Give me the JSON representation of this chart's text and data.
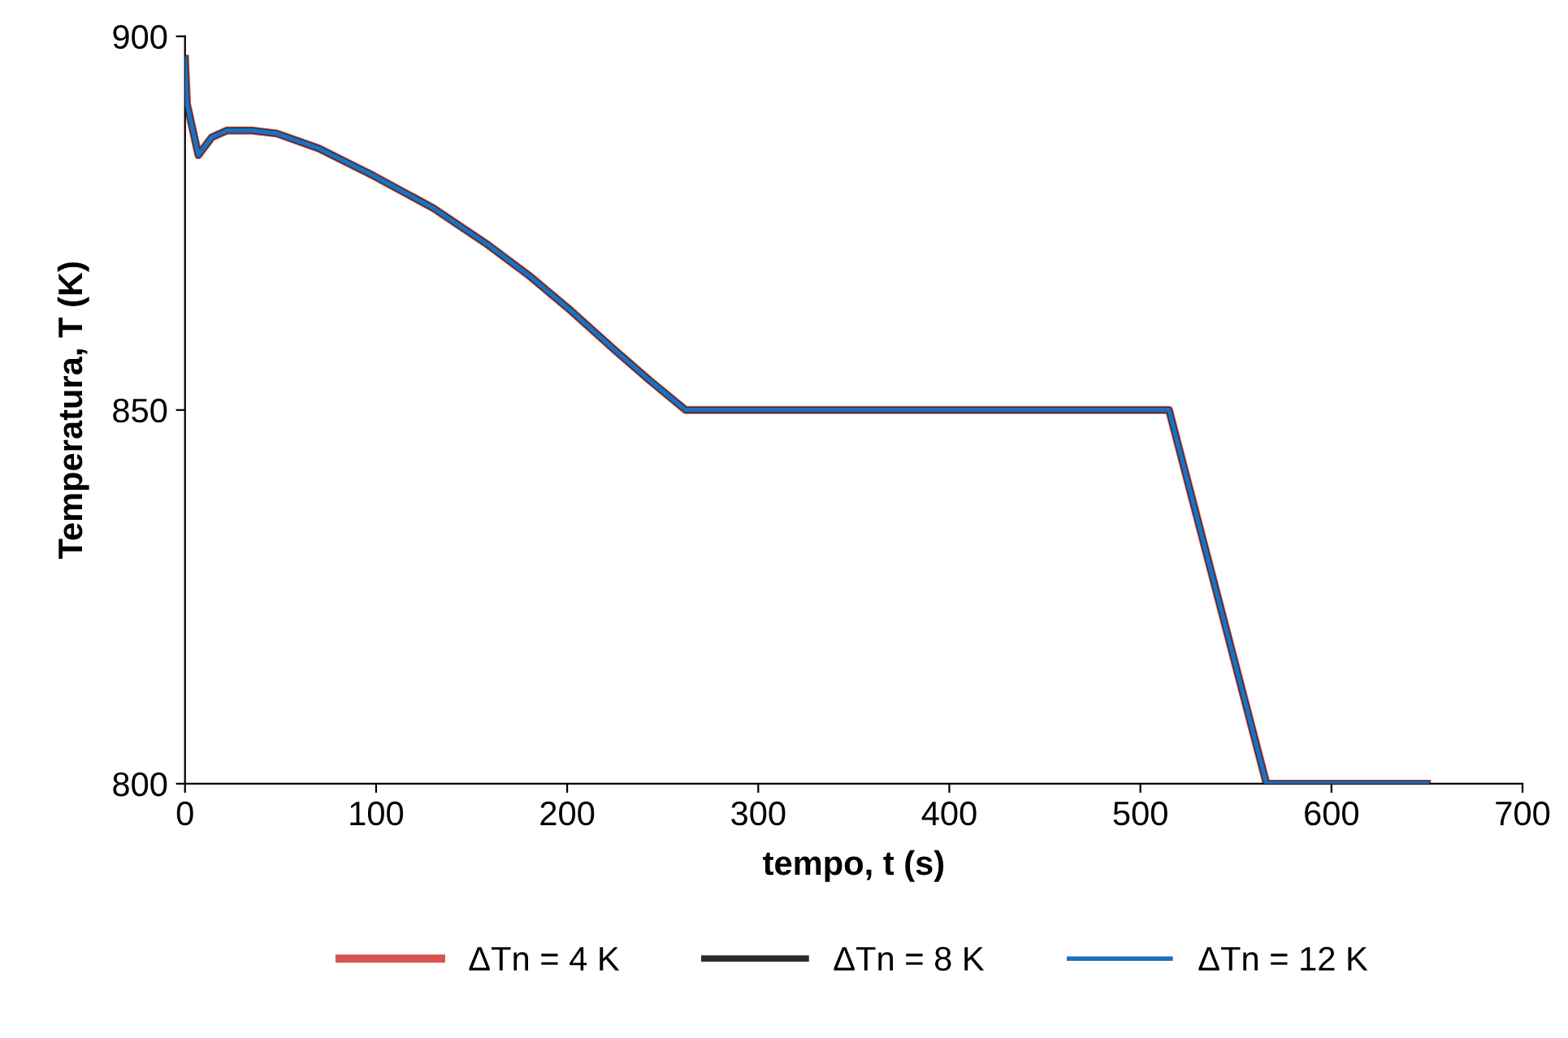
{
  "chart_data": {
    "type": "line",
    "xlabel": "tempo, t (s)",
    "ylabel": "Temperatura, T (K)",
    "x": [
      0,
      1,
      7,
      14,
      22,
      35,
      48,
      70,
      99,
      130,
      158,
      180,
      201,
      225,
      243,
      262,
      400,
      515,
      566,
      650
    ],
    "series": [
      {
        "name": "ΔTn = 4 K",
        "color": "#d9534f",
        "values": [
          897,
          891,
          884.1,
          886.5,
          887.4,
          887.4,
          887,
          885,
          881.3,
          877,
          872.2,
          868,
          863.5,
          858,
          854,
          850,
          850,
          850,
          800,
          800
        ]
      },
      {
        "name": "ΔTn = 8 K",
        "color": "#2b2b2b",
        "values": [
          897,
          891,
          884.1,
          886.5,
          887.4,
          887.4,
          887,
          885,
          881.3,
          877,
          872.2,
          868,
          863.5,
          858,
          854,
          850,
          850,
          850,
          800,
          800
        ]
      },
      {
        "name": "ΔTn = 12 K",
        "color": "#1f6fbf",
        "values": [
          897,
          891,
          884.1,
          886.5,
          887.4,
          887.4,
          887,
          885,
          881.3,
          877,
          872.2,
          868,
          863.5,
          858,
          854,
          850,
          850,
          850,
          800,
          800
        ]
      }
    ],
    "xlim": [
      0,
      700
    ],
    "xticks": [
      0,
      100,
      200,
      300,
      400,
      500,
      600,
      700
    ],
    "ylim": [
      800,
      900
    ],
    "yticks": [
      800,
      850,
      900
    ],
    "grid": false,
    "legend": "bottom",
    "marker": "none",
    "line_style": "solid"
  }
}
